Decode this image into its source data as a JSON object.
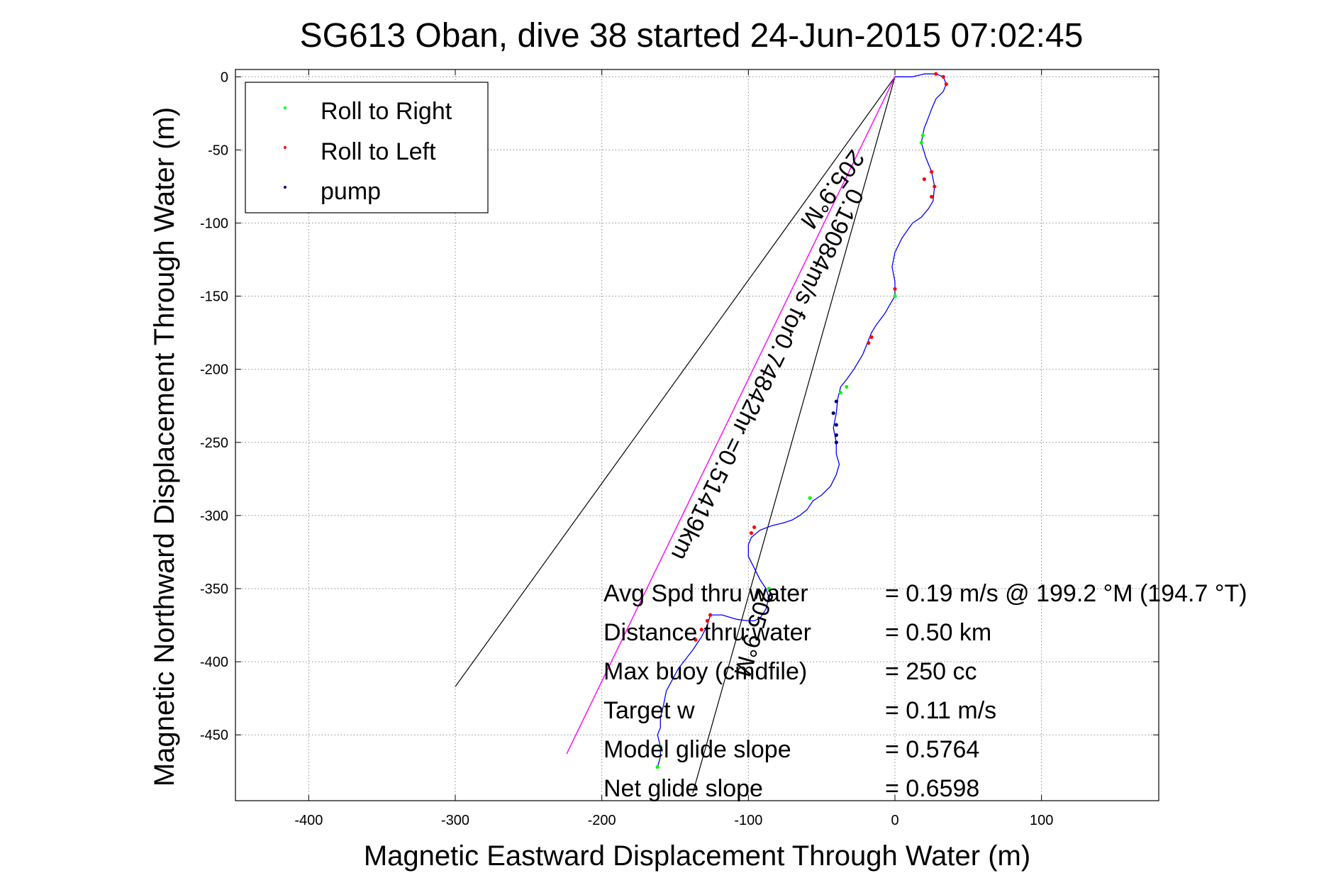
{
  "chart_data": {
    "type": "line",
    "title": "SG613 Oban, dive 38 started 24-Jun-2015 07:02:45",
    "xlabel": "Magnetic Eastward Displacement Through Water (m)",
    "ylabel": "Magnetic Northward Displacement Through Water (m)",
    "xlim": [
      -450,
      180
    ],
    "ylim": [
      -495,
      5
    ],
    "xticks": [
      -400,
      -300,
      -200,
      -100,
      0,
      100
    ],
    "yticks": [
      0,
      -50,
      -100,
      -150,
      -200,
      -250,
      -300,
      -350,
      -400,
      -450
    ],
    "grid": true,
    "legend": {
      "placement": "top-left",
      "entries": [
        {
          "label": "Roll to Right",
          "color": "#00ff00"
        },
        {
          "label": "Roll to Left",
          "color": "#ff0000"
        },
        {
          "label": "pump",
          "color": "#000080"
        }
      ]
    },
    "track": {
      "color": "#0000ff",
      "x": [
        0,
        5,
        12,
        20,
        28,
        33,
        35,
        33,
        28,
        25,
        22,
        20,
        19,
        18,
        21,
        25,
        27,
        26,
        23,
        18,
        12,
        5,
        0,
        -2,
        0,
        0,
        -3,
        -7,
        -13,
        -16,
        -18,
        -22,
        -28,
        -33,
        -37,
        -39,
        -40,
        -42,
        -40,
        -40,
        -38,
        -40,
        -44,
        -50,
        -56,
        -60,
        -65,
        -70,
        -76,
        -84,
        -92,
        -98,
        -100,
        -100,
        -96,
        -92,
        -88,
        -86,
        -88,
        -92,
        -96,
        -100,
        -108,
        -118,
        -126,
        -128,
        -132,
        -138,
        -148,
        -156,
        -158,
        -160,
        -160,
        -162,
        -160,
        -160,
        -162
      ],
      "y": [
        0,
        0,
        0,
        2,
        2,
        0,
        -5,
        -10,
        -15,
        -22,
        -30,
        -35,
        -40,
        -45,
        -55,
        -65,
        -75,
        -85,
        -90,
        -96,
        -100,
        -110,
        -120,
        -130,
        -140,
        -150,
        -155,
        -162,
        -170,
        -175,
        -180,
        -190,
        -200,
        -207,
        -212,
        -220,
        -230,
        -240,
        -250,
        -258,
        -265,
        -272,
        -280,
        -286,
        -290,
        -296,
        -300,
        -303,
        -305,
        -307,
        -310,
        -315,
        -320,
        -328,
        -336,
        -344,
        -350,
        -356,
        -364,
        -370,
        -372,
        -372,
        -371,
        -368,
        -368,
        -375,
        -383,
        -392,
        -405,
        -420,
        -430,
        -438,
        -445,
        -450,
        -458,
        -465,
        -472
      ]
    },
    "roll_to_right_x": [
      19,
      18,
      0,
      -33,
      -37,
      -58,
      -86,
      -160,
      -162
    ],
    "roll_to_right_y": [
      -40,
      -45,
      -150,
      -212,
      -216,
      -288,
      -350,
      -458,
      -472
    ],
    "roll_to_left_x": [
      28,
      33,
      35,
      25,
      20,
      27,
      25,
      0,
      -16,
      -18,
      -96,
      -98,
      -126,
      -128,
      -132,
      -136
    ],
    "roll_to_left_y": [
      2,
      0,
      -5,
      -65,
      -70,
      -75,
      -82,
      -145,
      -178,
      -182,
      -308,
      -312,
      -368,
      -372,
      -378,
      -385
    ],
    "pump_x": [
      -40,
      -42,
      -40,
      -40,
      -40
    ],
    "pump_y": [
      -222,
      -230,
      -238,
      -245,
      -250
    ],
    "bearing_lines": [
      {
        "label": "205.9°M",
        "x": [
          0,
          -300
        ],
        "y": [
          0,
          -417
        ]
      },
      {
        "label": "205.9°M",
        "x": [
          0,
          -138
        ],
        "y": [
          0,
          -490
        ]
      }
    ],
    "avg_vector": {
      "label": "0.19084m/s for0.74842hr =0.51419km",
      "color": "#ff00ff",
      "x": [
        0,
        -224
      ],
      "y": [
        0,
        -463
      ]
    },
    "stats": [
      {
        "label": "Avg Spd thru water",
        "value": "=  0.19 m/s @ 199.2 °M (194.7 °T)"
      },
      {
        "label": "Distance thru water",
        "value": "=  0.50 km"
      },
      {
        "label": "Max buoy (cmdfile)",
        "value": "= 250 cc"
      },
      {
        "label": "Target w",
        "value": "= 0.11 m/s"
      },
      {
        "label": "Model glide slope",
        "value": "= 0.5764"
      },
      {
        "label": "Net glide slope",
        "value": "= 0.6598"
      }
    ]
  }
}
